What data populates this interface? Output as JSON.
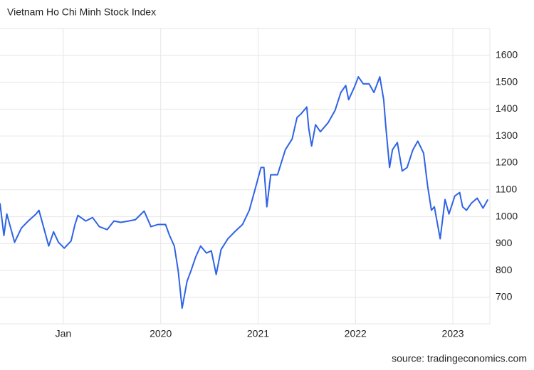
{
  "chart_data": {
    "type": "line",
    "title": "Vietnam Ho Chi Minh Stock Index",
    "source": "source: tradingeconomics.com",
    "color": "#2f63e6",
    "grid": true,
    "xlim": [
      2018.35,
      2023.38
    ],
    "ylim": [
      602,
      1700
    ],
    "xticks": [
      {
        "value": 2019,
        "label": "Jan"
      },
      2020,
      2021,
      2022,
      2023
    ],
    "yticks": [
      700,
      800,
      900,
      1000,
      1100,
      1200,
      1300,
      1400,
      1500,
      1600
    ],
    "x": [
      2018.35,
      2018.39,
      2018.42,
      2018.5,
      2018.57,
      2018.64,
      2018.72,
      2018.75,
      2018.8,
      2018.85,
      2018.9,
      2018.95,
      2019.01,
      2019.08,
      2019.12,
      2019.15,
      2019.23,
      2019.3,
      2019.37,
      2019.45,
      2019.52,
      2019.59,
      2019.67,
      2019.74,
      2019.83,
      2019.9,
      2019.97,
      2020.05,
      2020.09,
      2020.14,
      2020.18,
      2020.22,
      2020.27,
      2020.31,
      2020.36,
      2020.41,
      2020.47,
      2020.52,
      2020.57,
      2020.62,
      2020.69,
      2020.76,
      2020.84,
      2020.91,
      2020.97,
      2021.03,
      2021.06,
      2021.09,
      2021.13,
      2021.2,
      2021.28,
      2021.35,
      2021.4,
      2021.44,
      2021.5,
      2021.52,
      2021.55,
      2021.59,
      2021.64,
      2021.72,
      2021.79,
      2021.85,
      2021.9,
      2021.93,
      2021.99,
      2022.03,
      2022.08,
      2022.14,
      2022.19,
      2022.25,
      2022.29,
      2022.31,
      2022.35,
      2022.38,
      2022.43,
      2022.48,
      2022.53,
      2022.59,
      2022.64,
      2022.7,
      2022.74,
      2022.78,
      2022.81,
      2022.87,
      2022.92,
      2022.96,
      2023.02,
      2023.07,
      2023.1,
      2023.14,
      2023.19,
      2023.25,
      2023.31,
      2023.36
    ],
    "values": [
      1050,
      930,
      1010,
      905,
      958,
      984,
      1010,
      1024,
      958,
      891,
      944,
      905,
      883,
      910,
      971,
      1005,
      984,
      997,
      963,
      952,
      984,
      979,
      984,
      989,
      1021,
      963,
      971,
      971,
      931,
      891,
      798,
      660,
      759,
      798,
      851,
      891,
      865,
      873,
      785,
      878,
      918,
      944,
      971,
      1024,
      1103,
      1183,
      1183,
      1037,
      1156,
      1156,
      1249,
      1289,
      1369,
      1382,
      1408,
      1329,
      1263,
      1342,
      1316,
      1350,
      1395,
      1462,
      1488,
      1435,
      1483,
      1520,
      1494,
      1494,
      1462,
      1520,
      1435,
      1342,
      1183,
      1249,
      1276,
      1170,
      1183,
      1249,
      1281,
      1236,
      1117,
      1024,
      1037,
      918,
      1064,
      1010,
      1077,
      1090,
      1037,
      1024,
      1050,
      1069,
      1032,
      1064
    ]
  }
}
